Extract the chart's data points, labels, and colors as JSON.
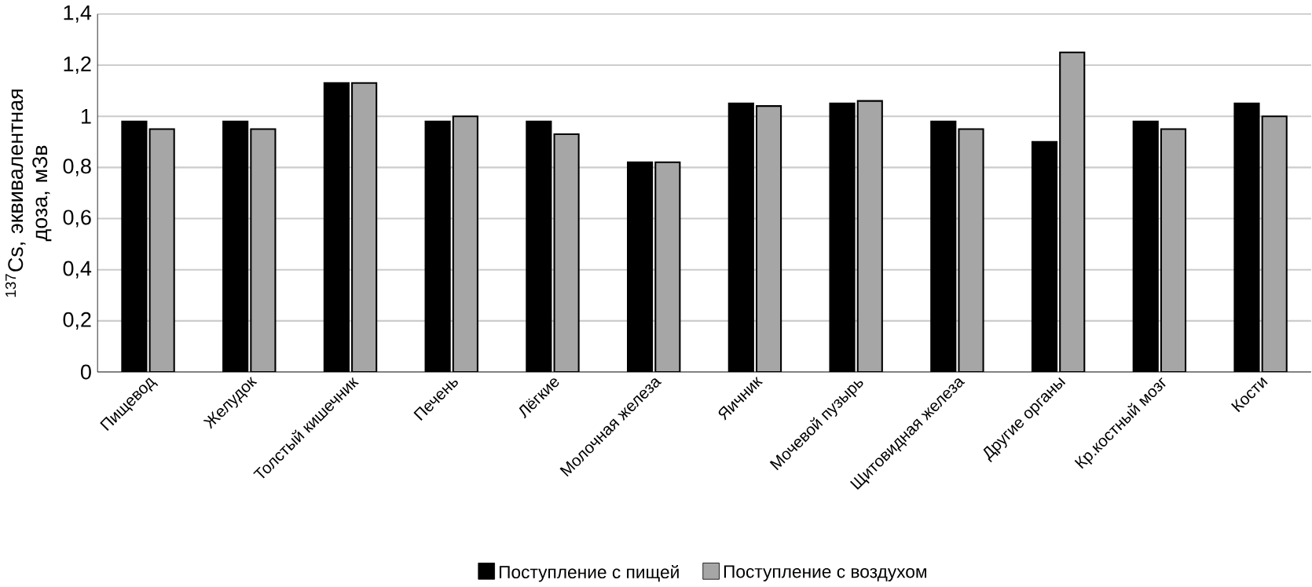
{
  "chart_data": {
    "type": "bar",
    "ylabel": "$^{137}$Cs, эквивалентная доза, мЗв",
    "categories": [
      "Пищевод",
      "Желудок",
      "Толстый кишечник",
      "Печень",
      "Лёгкие",
      "Молочная железа",
      "Яичник",
      "Мочевой пузырь",
      "Щитовидная железа",
      "Другие органы",
      "Кр.костный мозг",
      "Кости"
    ],
    "series": [
      {
        "name": "Поступление с пищей",
        "color": "#000000",
        "values": [
          0.98,
          0.98,
          1.13,
          0.98,
          0.98,
          0.82,
          1.05,
          1.05,
          0.98,
          0.9,
          0.98,
          1.05
        ]
      },
      {
        "name": "Поступление с воздухом",
        "color": "#a6a6a6",
        "values": [
          0.95,
          0.95,
          1.13,
          1.0,
          0.93,
          0.82,
          1.04,
          1.06,
          0.95,
          1.25,
          0.95,
          1.0
        ]
      }
    ],
    "ylim": [
      0,
      1.4
    ],
    "yticks": [
      0,
      {
        "value": 0.2,
        "label": "0,2"
      },
      {
        "value": 0.4,
        "label": "0,4"
      },
      {
        "value": 0.6,
        "label": "0,6"
      },
      {
        "value": 0.8,
        "label": "0,8"
      },
      1,
      {
        "value": 1.2,
        "label": "1,2"
      },
      {
        "value": 1.4,
        "label": "1,4"
      }
    ],
    "grid": "y",
    "legend": "bottom"
  }
}
